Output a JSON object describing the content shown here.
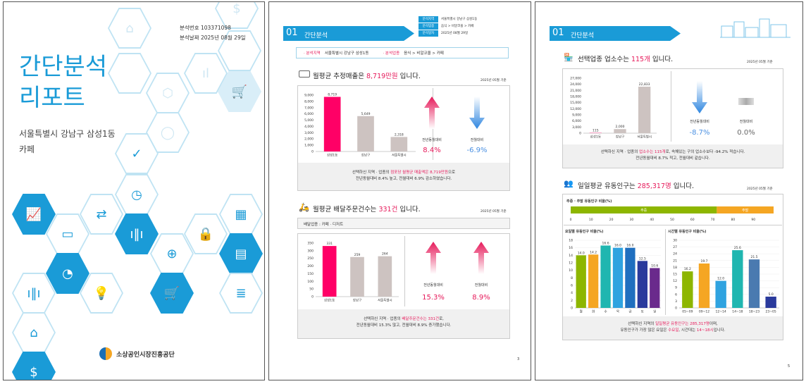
{
  "cover": {
    "doc_no": "분석번호 103371098",
    "doc_date": "분석날짜 2025년 08월 29일",
    "title_line1": "간단분석",
    "title_line2": "리포트",
    "region": "서울특별시 강남구 삼성1동",
    "industry": "카페",
    "org": "소상공인시장진흥공단"
  },
  "page2": {
    "section_num": "01",
    "section_title": "간단분석",
    "meta_labels": [
      "분석지역",
      "분석업종",
      "분석일자"
    ],
    "meta_values": [
      "서울특별시 강남구 삼성1동",
      "음식 > 비알코올 > 카페",
      "2025년 08월 29일"
    ],
    "filter_region_label": "· 분석지역",
    "filter_region": "서울특별시 강남구 삼성1동",
    "filter_industry_label": "· 분석업종",
    "filter_industry": "음식 > 비알코올 > 카페",
    "sales_title_pre": "월평균 추정매출은 ",
    "sales_title_val": "8,719만원",
    "sales_title_post": " 입니다.",
    "sales_ref": "2025년 05월 기준",
    "sales_change_label_yoy": "전년동월대비",
    "sales_change_label_mom": "전월대비",
    "sales_yoy": "8.4%",
    "sales_mom": "-6.9%",
    "sales_summary_pre": "선택하신 지역 · 업종의 ",
    "sales_summary_red": "점포당 월평균 매출액은 8,719만원",
    "sales_summary_post": "으로",
    "sales_summary_line2": "전년동월대비 8.4% 높고, 전월대비 6.9% 감소하였습니다.",
    "delivery_title_pre": "월평균 배달주문건수는 ",
    "delivery_title_val": "331건",
    "delivery_title_post": " 입니다.",
    "delivery_ref": "2025년 05월 기준",
    "delivery_industry": "배달업종 : 카페 · 디저트",
    "delivery_yoy": "15.3%",
    "delivery_mom": "8.9%",
    "delivery_summary_pre": "선택하신 지역 · 업종의 ",
    "delivery_summary_red": "배달주문건수는 331건",
    "delivery_summary_post": "로,",
    "delivery_summary_line2": "전년동월대비 15.3% 많고, 전월대비 8.9% 증가했습니다.",
    "page_no": "3"
  },
  "page3": {
    "section_num": "01",
    "section_title": "간단분석",
    "stores_title_pre": "선택업종 업소수는 ",
    "stores_title_val": "115개",
    "stores_title_post": " 입니다.",
    "stores_ref": "2025년 05월 기준",
    "stores_yoy_label": "전년동월대비",
    "stores_mom_label": "전월대비",
    "stores_yoy": "-8.7%",
    "stores_mom": "0.0%",
    "stores_summary_pre": "선택하신 지역 · 업종의 ",
    "stores_summary_red": "업소수는 115개",
    "stores_summary_post": "로, 속해있는 구의 업소수보다 -94.2% 적습니다.",
    "stores_summary_line2": "전년동월대비 8.7% 적고, 전월대비 같습니다.",
    "pop_title_pre": "일일평균 유동인구는 ",
    "pop_title_val": "285,317명",
    "pop_title_post": " 입니다.",
    "pop_ref": "2025년 05월 기준",
    "wk_label": "주중 · 주말 유동인구 비율(%)",
    "wk_weekday": "주중",
    "wk_weekend": "주말",
    "dow_title": "요일별 유동인구 비율(%)",
    "hour_title": "시간별 유동인구 비율(%)",
    "pop_summary_pre": "선택하신 지역의 ",
    "pop_summary_red": "일일평균 유동인구는 285,317명",
    "pop_summary_post": "이며,",
    "pop_summary_line2_pre": "유동인구가 가장 많은 요일은 ",
    "pop_summary_day": "수요일",
    "pop_summary_mid": ", 시간대는 ",
    "pop_summary_time": "14~18시",
    "pop_summary_end": "입니다.",
    "page_no": "5"
  },
  "colors": {
    "accent": "#1a9bd7",
    "red": "#e6195a",
    "bar_main": "#ff0066",
    "bar_other": "#cdc3c1"
  },
  "chart_data": [
    {
      "type": "bar",
      "id": "sales",
      "categories": [
        "삼성1동",
        "강남구",
        "서울특별시"
      ],
      "values": [
        8719,
        5649,
        2318
      ],
      "value_labels": [
        "8,719",
        "5,649",
        "2,318"
      ],
      "ylim": [
        0,
        9000
      ],
      "yticks": [
        "0",
        "1,000",
        "2,000",
        "3,000",
        "4,000",
        "5,000",
        "6,000",
        "7,000",
        "8,000",
        "9,000"
      ]
    },
    {
      "type": "bar",
      "id": "delivery",
      "categories": [
        "삼성1동",
        "강남구",
        "서울특별시"
      ],
      "values": [
        331,
        259,
        264
      ],
      "value_labels": [
        "331",
        "259",
        "264"
      ],
      "ylim": [
        0,
        350
      ],
      "yticks": [
        "0",
        "50",
        "100",
        "150",
        "200",
        "250",
        "300",
        "350"
      ]
    },
    {
      "type": "bar",
      "id": "stores",
      "categories": [
        "삼성1동",
        "강남구",
        "서울특별시"
      ],
      "values": [
        115,
        2000,
        22833
      ],
      "value_labels": [
        "115",
        "2,000",
        "22,833"
      ],
      "ylim": [
        0,
        27000
      ],
      "yticks": [
        "0",
        "3,000",
        "6,000",
        "9,000",
        "12,000",
        "15,000",
        "18,000",
        "21,000",
        "24,000",
        "27,000"
      ]
    },
    {
      "type": "bar",
      "id": "weekday_weekend",
      "categories": [
        "주중",
        "주말"
      ],
      "values": [
        72,
        28
      ],
      "xticks": [
        "0",
        "10",
        "20",
        "30",
        "40",
        "50",
        "60",
        "70",
        "80",
        "90"
      ]
    },
    {
      "type": "bar",
      "id": "dow",
      "categories": [
        "월",
        "화",
        "수",
        "목",
        "금",
        "토",
        "일"
      ],
      "values": [
        14.0,
        14.2,
        16.6,
        16.0,
        16.0,
        12.5,
        10.6
      ],
      "value_labels": [
        "14.0",
        "14.2",
        "16.6",
        "16.0",
        "16.0",
        "12.5",
        "10.6"
      ],
      "ylim": [
        0,
        18
      ],
      "yticks": [
        "0",
        "2",
        "4",
        "6",
        "8",
        "10",
        "12",
        "14",
        "16",
        "18"
      ],
      "colors": [
        "#8db600",
        "#f5a623",
        "#1fb6b0",
        "#2fa3e0",
        "#1f6fbf",
        "#2a3a9c",
        "#6a2a8c"
      ]
    },
    {
      "type": "bar",
      "id": "hour",
      "categories": [
        "05~09",
        "09~12",
        "12~14",
        "14~18",
        "18~23",
        "23~05"
      ],
      "values": [
        16.2,
        19.7,
        12.0,
        25.6,
        21.5,
        5.0
      ],
      "value_labels": [
        "16.2",
        "19.7",
        "12.0",
        "25.6",
        "21.5",
        "5.0"
      ],
      "ylim": [
        0,
        30
      ],
      "yticks": [
        "0",
        "3",
        "6",
        "9",
        "12",
        "15",
        "18",
        "21",
        "24",
        "27",
        "30"
      ],
      "colors": [
        "#8db600",
        "#f5a623",
        "#2fa3e0",
        "#1fb6b0",
        "#4a7ab0",
        "#2a3a9c"
      ]
    }
  ]
}
